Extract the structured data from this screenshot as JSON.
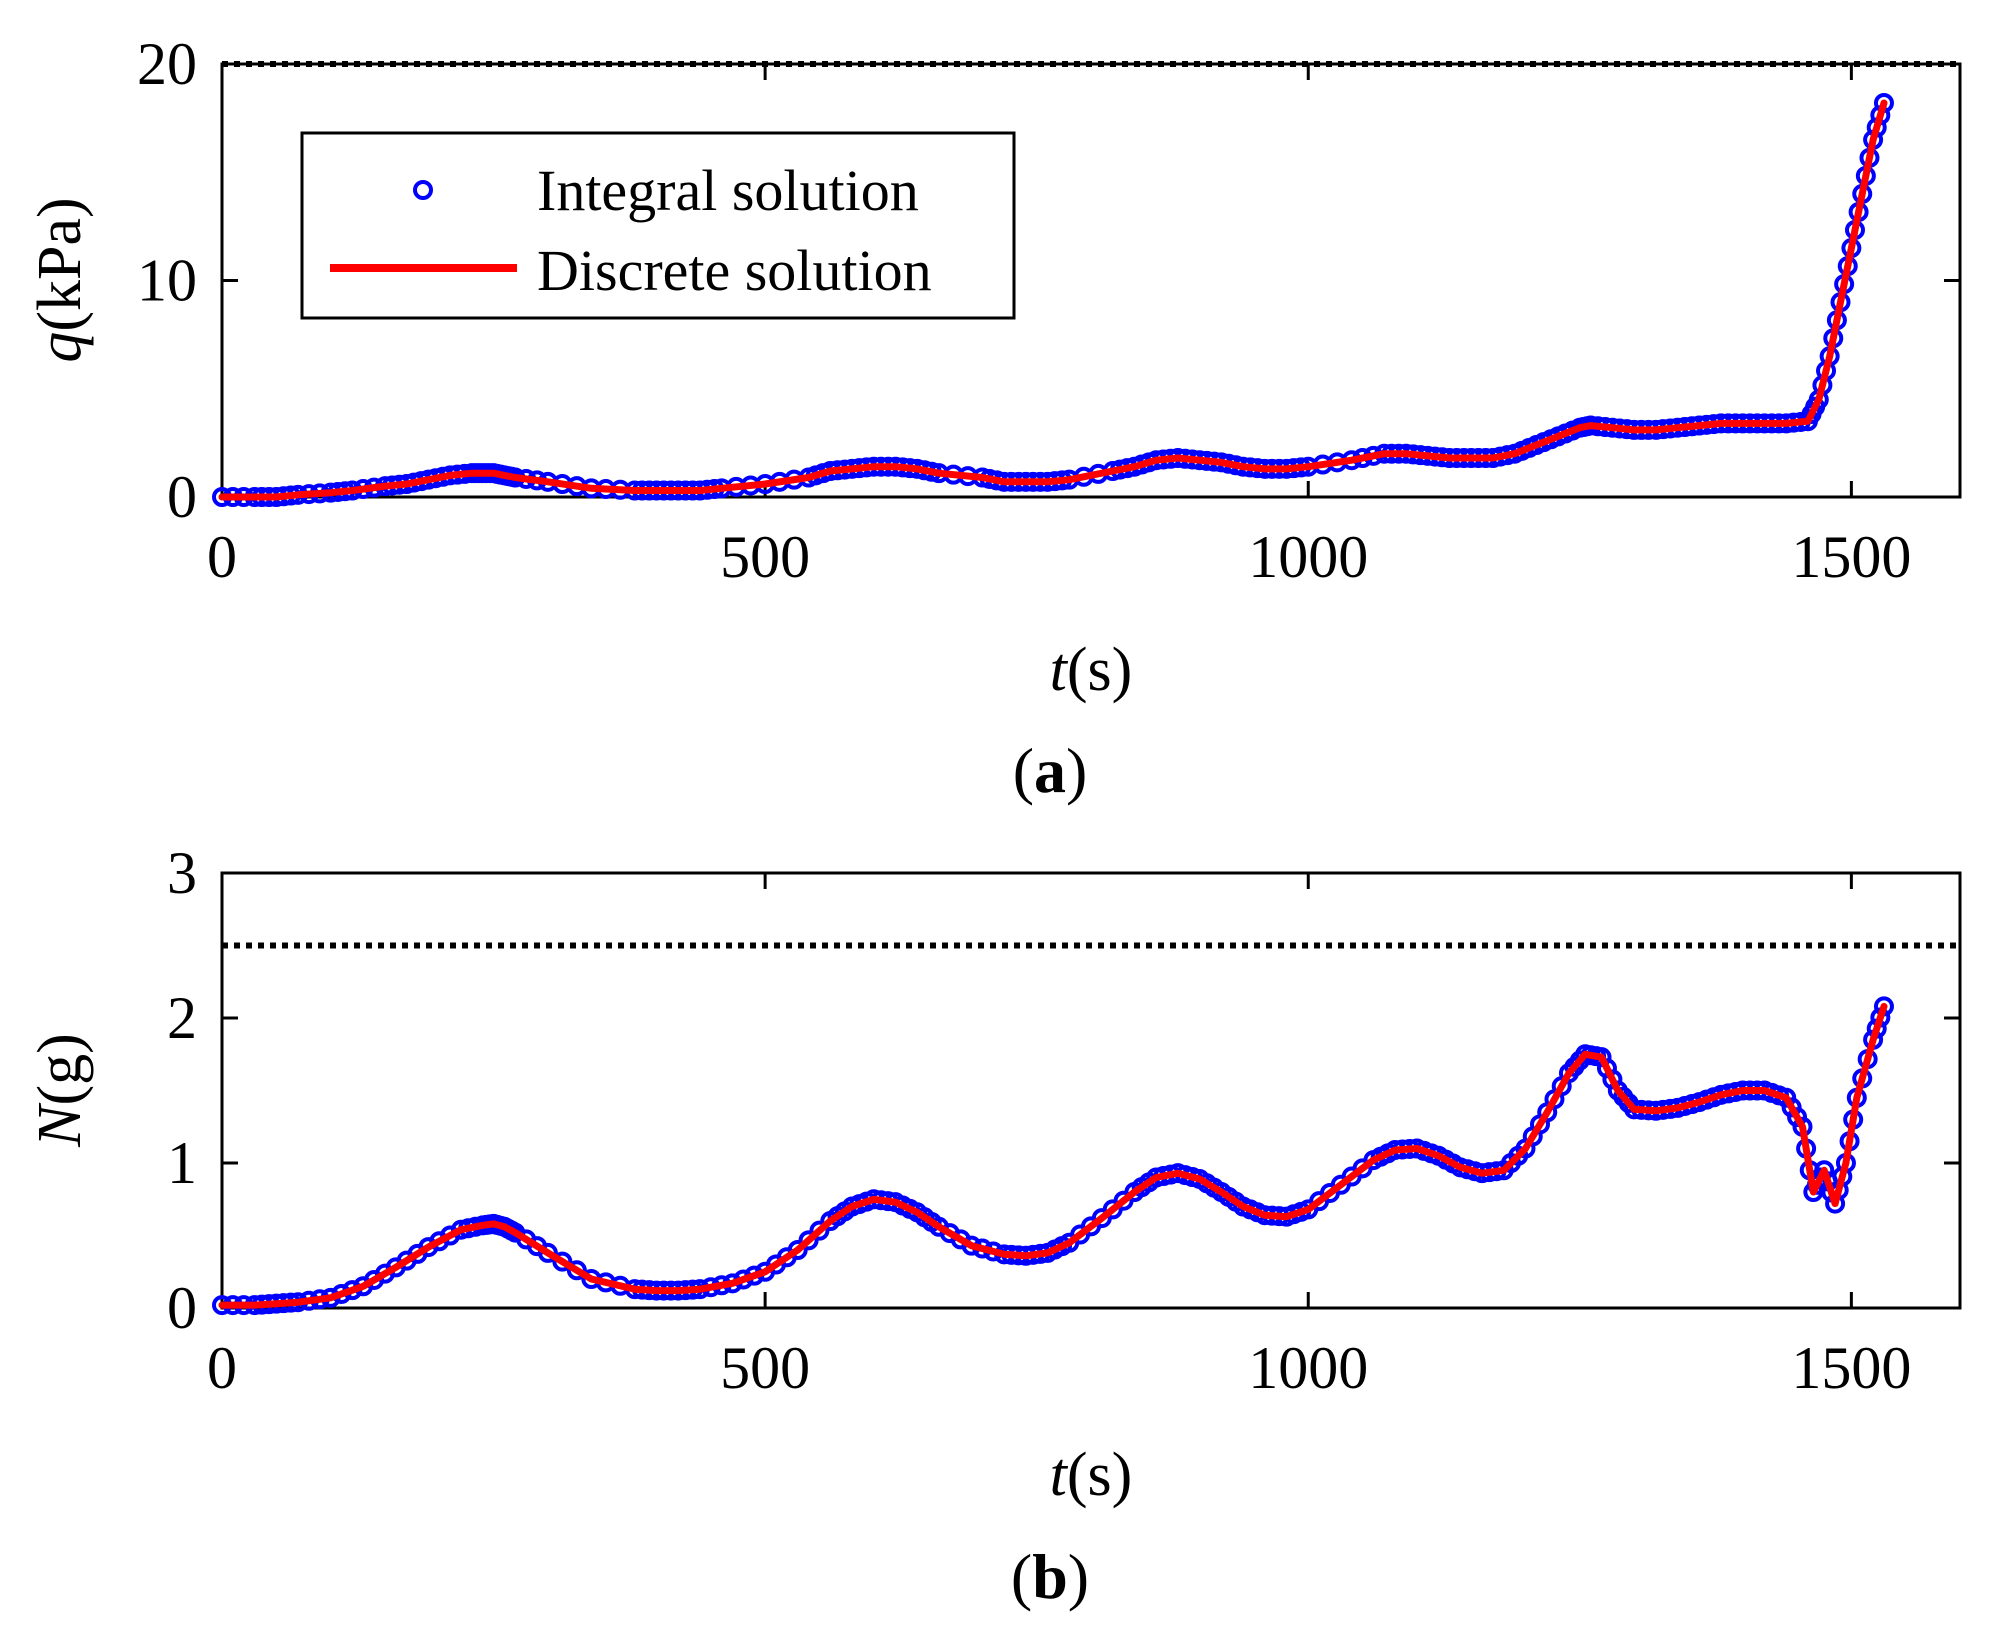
{
  "chart_data": [
    {
      "type": "line",
      "panel": "a",
      "caption": {
        "open": "(",
        "letter": "a",
        "close": ")"
      },
      "xlabel": {
        "var": "t",
        "unit": "(s)"
      },
      "ylabel": {
        "var": "q",
        "unit": "(kPa)"
      },
      "xlim": [
        0,
        1600
      ],
      "ylim": [
        0,
        20
      ],
      "xticks": [
        0,
        500,
        1000,
        1500
      ],
      "yticks": [
        0,
        10,
        20
      ],
      "xtick_labels": [
        "0",
        "500",
        "1000",
        "1500"
      ],
      "ytick_labels": [
        "0",
        "10",
        "20"
      ],
      "threshold": 20,
      "legend": {
        "position": "upper-left",
        "entries": [
          "Integral solution",
          "Discrete solution"
        ]
      },
      "series": [
        {
          "name": "Integral solution",
          "style": "markers",
          "color": "#0000ff",
          "x": [
            0,
            30,
            50,
            70,
            100,
            120,
            150,
            170,
            190,
            210,
            230,
            240,
            250,
            260,
            270,
            300,
            340,
            380,
            400,
            420,
            440,
            460,
            500,
            540,
            560,
            580,
            600,
            620,
            640,
            660,
            700,
            720,
            740,
            760,
            780,
            820,
            840,
            860,
            880,
            900,
            920,
            940,
            960,
            980,
            1000,
            1040,
            1070,
            1090,
            1110,
            1130,
            1150,
            1170,
            1190,
            1210,
            1230,
            1250,
            1260,
            1280,
            1300,
            1320,
            1340,
            1360,
            1380,
            1400,
            1420,
            1440,
            1460,
            1470,
            1480,
            1490,
            1500,
            1510,
            1520,
            1530
          ],
          "y": [
            0,
            0,
            0,
            0.1,
            0.2,
            0.3,
            0.5,
            0.6,
            0.8,
            1.0,
            1.1,
            1.1,
            1.1,
            1.0,
            0.9,
            0.7,
            0.4,
            0.3,
            0.3,
            0.3,
            0.3,
            0.4,
            0.6,
            0.9,
            1.2,
            1.3,
            1.4,
            1.4,
            1.3,
            1.1,
            0.9,
            0.7,
            0.7,
            0.7,
            0.8,
            1.2,
            1.4,
            1.7,
            1.8,
            1.7,
            1.6,
            1.4,
            1.3,
            1.3,
            1.4,
            1.7,
            2.0,
            2.0,
            1.9,
            1.8,
            1.8,
            1.8,
            2.0,
            2.4,
            2.8,
            3.2,
            3.3,
            3.2,
            3.1,
            3.1,
            3.2,
            3.3,
            3.4,
            3.4,
            3.4,
            3.4,
            3.5,
            4.5,
            6.5,
            9.0,
            11.5,
            14.0,
            16.5,
            18.2
          ]
        },
        {
          "name": "Discrete solution",
          "style": "line",
          "color": "#ff0000",
          "x": [
            0,
            30,
            50,
            70,
            100,
            120,
            150,
            170,
            190,
            210,
            230,
            240,
            250,
            260,
            270,
            300,
            340,
            380,
            400,
            420,
            440,
            460,
            500,
            540,
            560,
            580,
            600,
            620,
            640,
            660,
            700,
            720,
            740,
            760,
            780,
            820,
            840,
            860,
            880,
            900,
            920,
            940,
            960,
            980,
            1000,
            1040,
            1070,
            1090,
            1110,
            1130,
            1150,
            1170,
            1190,
            1210,
            1230,
            1250,
            1260,
            1280,
            1300,
            1320,
            1340,
            1360,
            1380,
            1400,
            1420,
            1440,
            1460,
            1470,
            1480,
            1490,
            1500,
            1510,
            1520,
            1530
          ],
          "y": [
            0,
            0,
            0,
            0.1,
            0.2,
            0.3,
            0.5,
            0.6,
            0.8,
            1.0,
            1.1,
            1.1,
            1.1,
            1.0,
            0.9,
            0.7,
            0.4,
            0.3,
            0.3,
            0.3,
            0.3,
            0.4,
            0.6,
            0.9,
            1.2,
            1.3,
            1.4,
            1.4,
            1.3,
            1.1,
            0.9,
            0.7,
            0.7,
            0.7,
            0.8,
            1.2,
            1.4,
            1.7,
            1.8,
            1.7,
            1.6,
            1.4,
            1.3,
            1.3,
            1.4,
            1.7,
            2.0,
            2.0,
            1.9,
            1.8,
            1.8,
            1.8,
            2.0,
            2.4,
            2.8,
            3.2,
            3.3,
            3.2,
            3.1,
            3.1,
            3.2,
            3.3,
            3.4,
            3.4,
            3.4,
            3.4,
            3.5,
            4.5,
            6.5,
            9.0,
            11.5,
            14.0,
            16.5,
            18.2
          ]
        }
      ]
    },
    {
      "type": "line",
      "panel": "b",
      "caption": {
        "open": "(",
        "letter": "b",
        "close": ")"
      },
      "xlabel": {
        "var": "t",
        "unit": "(s)"
      },
      "ylabel": {
        "var": "N",
        "unit": "(g)"
      },
      "xlim": [
        0,
        1600
      ],
      "ylim": [
        0,
        3
      ],
      "xticks": [
        0,
        500,
        1000,
        1500
      ],
      "yticks": [
        0,
        1,
        2,
        3
      ],
      "xtick_labels": [
        "0",
        "500",
        "1000",
        "1500"
      ],
      "ytick_labels": [
        "0",
        "1",
        "2",
        "3"
      ],
      "threshold": 2.5,
      "series": [
        {
          "name": "Integral solution",
          "style": "markers",
          "color": "#0000ff",
          "x": [
            0,
            30,
            50,
            70,
            100,
            130,
            160,
            190,
            220,
            240,
            250,
            260,
            270,
            300,
            340,
            380,
            400,
            420,
            440,
            470,
            500,
            530,
            560,
            580,
            600,
            620,
            640,
            660,
            690,
            720,
            740,
            760,
            780,
            810,
            840,
            860,
            880,
            900,
            920,
            940,
            960,
            980,
            1000,
            1030,
            1060,
            1080,
            1100,
            1120,
            1140,
            1160,
            1180,
            1200,
            1220,
            1240,
            1255,
            1270,
            1285,
            1300,
            1320,
            1340,
            1360,
            1380,
            1400,
            1420,
            1440,
            1455,
            1465,
            1475,
            1485,
            1495,
            1505,
            1520,
            1530
          ],
          "y": [
            0.02,
            0.02,
            0.03,
            0.04,
            0.07,
            0.15,
            0.28,
            0.42,
            0.54,
            0.57,
            0.58,
            0.56,
            0.52,
            0.38,
            0.2,
            0.13,
            0.12,
            0.12,
            0.13,
            0.17,
            0.25,
            0.4,
            0.6,
            0.7,
            0.75,
            0.73,
            0.66,
            0.56,
            0.43,
            0.37,
            0.36,
            0.38,
            0.45,
            0.62,
            0.8,
            0.9,
            0.93,
            0.89,
            0.8,
            0.7,
            0.64,
            0.63,
            0.68,
            0.85,
            1.02,
            1.09,
            1.1,
            1.05,
            0.97,
            0.93,
            0.95,
            1.1,
            1.35,
            1.62,
            1.75,
            1.73,
            1.5,
            1.37,
            1.36,
            1.38,
            1.42,
            1.47,
            1.5,
            1.5,
            1.45,
            1.25,
            0.8,
            0.95,
            0.72,
            1.0,
            1.45,
            1.85,
            2.08
          ]
        },
        {
          "name": "Discrete solution",
          "style": "line",
          "color": "#ff0000",
          "x": [
            0,
            30,
            50,
            70,
            100,
            130,
            160,
            190,
            220,
            240,
            250,
            260,
            270,
            300,
            340,
            380,
            400,
            420,
            440,
            470,
            500,
            530,
            560,
            580,
            600,
            620,
            640,
            660,
            690,
            720,
            740,
            760,
            780,
            810,
            840,
            860,
            880,
            900,
            920,
            940,
            960,
            980,
            1000,
            1030,
            1060,
            1080,
            1100,
            1120,
            1140,
            1160,
            1180,
            1200,
            1220,
            1240,
            1255,
            1270,
            1285,
            1300,
            1320,
            1340,
            1360,
            1380,
            1400,
            1420,
            1440,
            1455,
            1465,
            1475,
            1485,
            1495,
            1505,
            1520,
            1530
          ],
          "y": [
            0.02,
            0.02,
            0.03,
            0.04,
            0.07,
            0.15,
            0.28,
            0.42,
            0.54,
            0.57,
            0.58,
            0.56,
            0.52,
            0.38,
            0.2,
            0.13,
            0.12,
            0.12,
            0.13,
            0.17,
            0.25,
            0.4,
            0.6,
            0.7,
            0.75,
            0.73,
            0.66,
            0.56,
            0.43,
            0.37,
            0.36,
            0.38,
            0.45,
            0.62,
            0.8,
            0.9,
            0.93,
            0.89,
            0.8,
            0.7,
            0.64,
            0.63,
            0.68,
            0.85,
            1.02,
            1.09,
            1.1,
            1.05,
            0.97,
            0.93,
            0.95,
            1.1,
            1.35,
            1.62,
            1.75,
            1.73,
            1.5,
            1.37,
            1.36,
            1.38,
            1.42,
            1.47,
            1.5,
            1.5,
            1.45,
            1.25,
            0.8,
            0.95,
            0.72,
            1.0,
            1.45,
            1.85,
            2.08
          ]
        }
      ]
    }
  ]
}
